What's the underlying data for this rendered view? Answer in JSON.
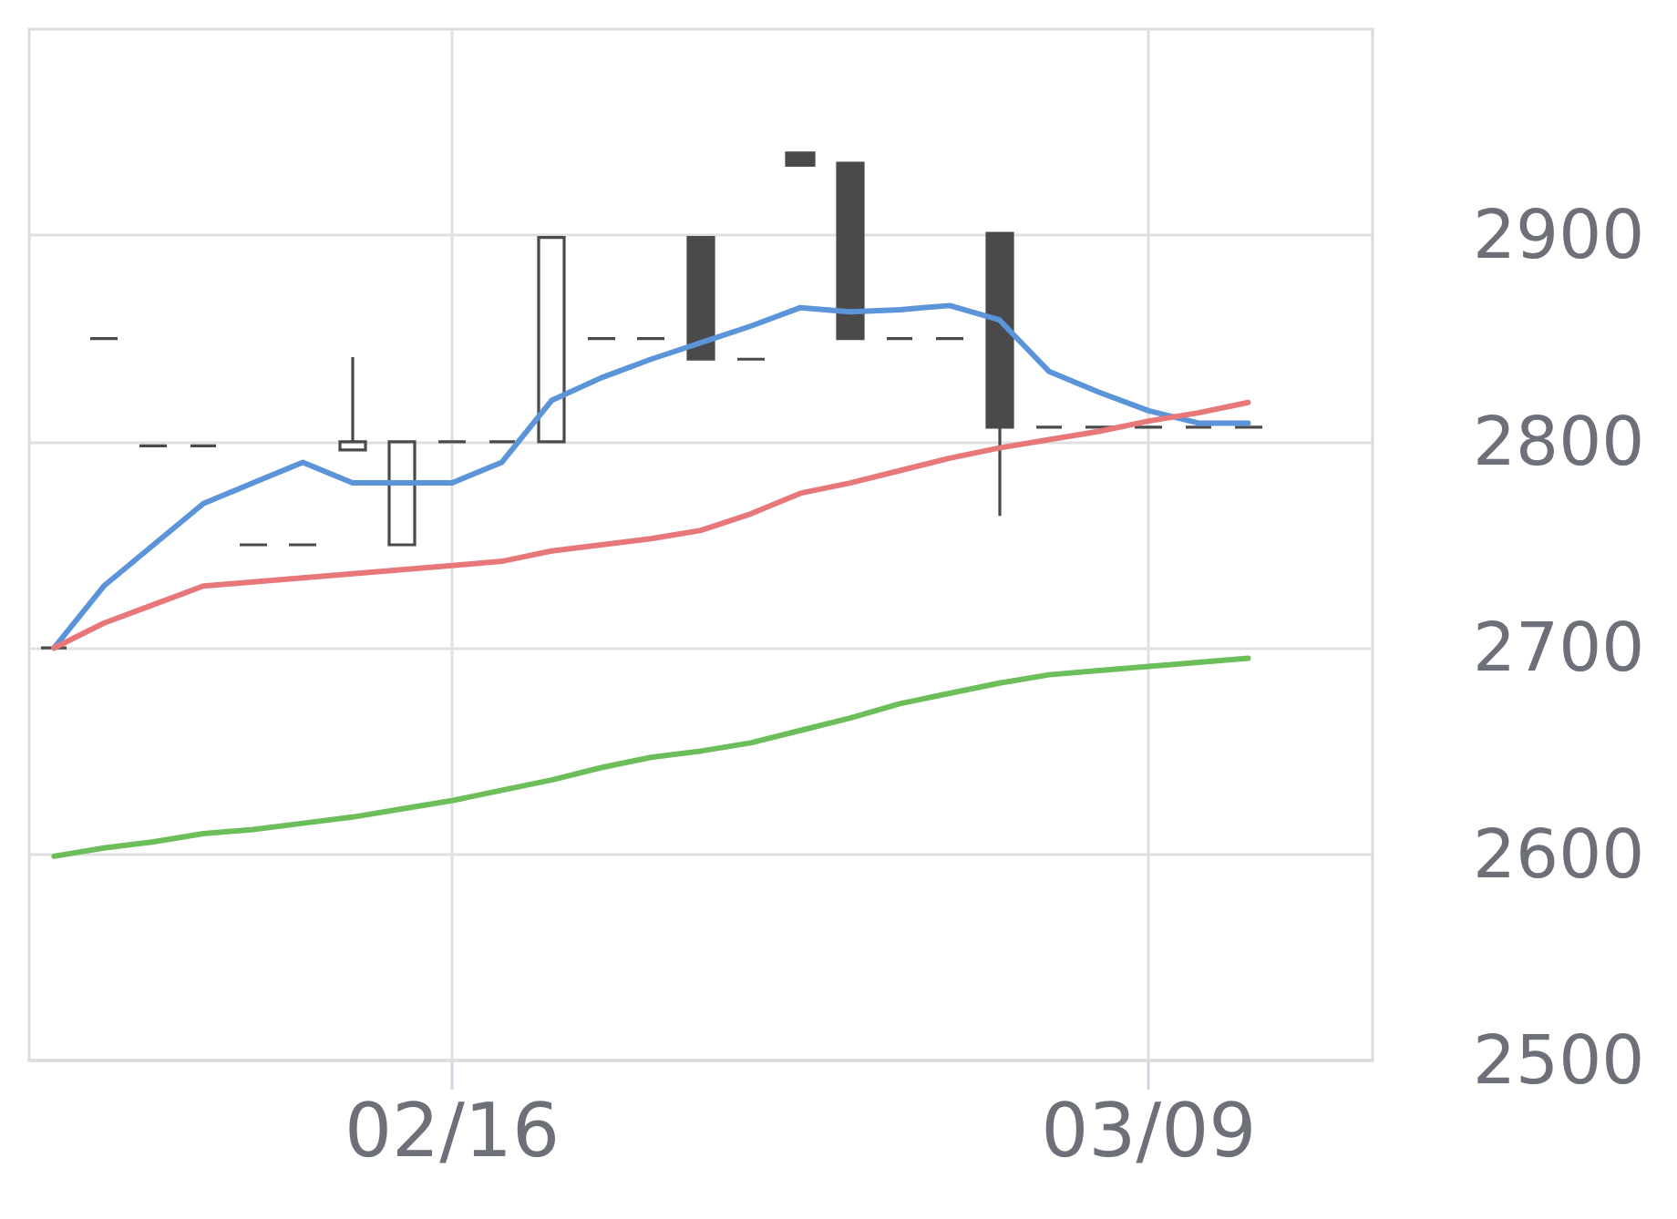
{
  "chart_data": {
    "type": "candlestick",
    "categories": [
      null,
      null,
      null,
      null,
      null,
      null,
      null,
      null,
      "02/16",
      null,
      null,
      null,
      null,
      null,
      null,
      null,
      null,
      null,
      null,
      null,
      null,
      null,
      "03/09",
      null,
      null,
      null,
      null
    ],
    "ohlc": [
      [
        2700,
        2700,
        2700,
        2700
      ],
      [
        2850,
        2850,
        2850,
        2850
      ],
      [
        2798,
        2798,
        2798,
        2798
      ],
      [
        2798,
        2798,
        2798,
        2798
      ],
      [
        2750,
        2750,
        2750,
        2750
      ],
      [
        2750,
        2750,
        2750,
        2750
      ],
      [
        2796,
        2841,
        2796,
        2800
      ],
      [
        2750,
        2800,
        2750,
        2800
      ],
      [
        2800,
        2800,
        2800,
        2800
      ],
      [
        2800,
        2800,
        2800,
        2800
      ],
      [
        2800,
        2899,
        2800,
        2899
      ],
      [
        2850,
        2850,
        2850,
        2850
      ],
      [
        2850,
        2850,
        2850,
        2850
      ],
      [
        2899,
        2899,
        2840,
        2840
      ],
      [
        2840,
        2840,
        2840,
        2840
      ],
      [
        2940,
        2940,
        2934,
        2934
      ],
      [
        2935,
        2935,
        2850,
        2850
      ],
      [
        2850,
        2850,
        2850,
        2850
      ],
      [
        2850,
        2850,
        2850,
        2850
      ],
      [
        2901,
        2901,
        2764,
        2807
      ],
      [
        2807,
        2807,
        2807,
        2807
      ],
      [
        2807,
        2807,
        2807,
        2807
      ],
      [
        2807,
        2807,
        2807,
        2807
      ],
      [
        2807,
        2807,
        2807,
        2807
      ],
      [
        2807,
        2807,
        2807,
        2807
      ],
      null,
      null
    ],
    "color": "#4a4a4a",
    "series": [
      {
        "type": "line",
        "color": "#5b94d9",
        "values": [
          2700,
          2730,
          2750,
          2770,
          2780,
          2790,
          2780,
          2780,
          2780,
          2790,
          2820,
          2831,
          2840,
          2848,
          2856,
          2865,
          2863,
          2864,
          2866,
          2859,
          2834,
          2824,
          2815,
          2809,
          2809,
          null,
          null
        ]
      },
      {
        "type": "line",
        "color": "#e8777a",
        "values": [
          2700,
          2712,
          2721,
          2730,
          2732,
          2734,
          2736,
          2738,
          2740,
          2742,
          2747,
          2750,
          2753,
          2757,
          2765,
          2775,
          2780,
          2786,
          2792,
          2797,
          2801,
          2805,
          2810,
          2814,
          2819,
          null,
          null
        ]
      },
      {
        "type": "line",
        "color": "#6bbe5a",
        "values": [
          2599,
          2603,
          2606,
          2610,
          2612,
          2615,
          2618,
          2622,
          2626,
          2631,
          2636,
          2642,
          2647,
          2650,
          2654,
          2660,
          2666,
          2673,
          2678,
          2683,
          2687,
          2689,
          2691,
          2693,
          2695,
          null,
          null
        ]
      }
    ],
    "ylim": [
      2500,
      3000
    ],
    "yticks": [
      2500,
      2600,
      2700,
      2800,
      2900
    ],
    "grid": true,
    "marker": "none"
  }
}
